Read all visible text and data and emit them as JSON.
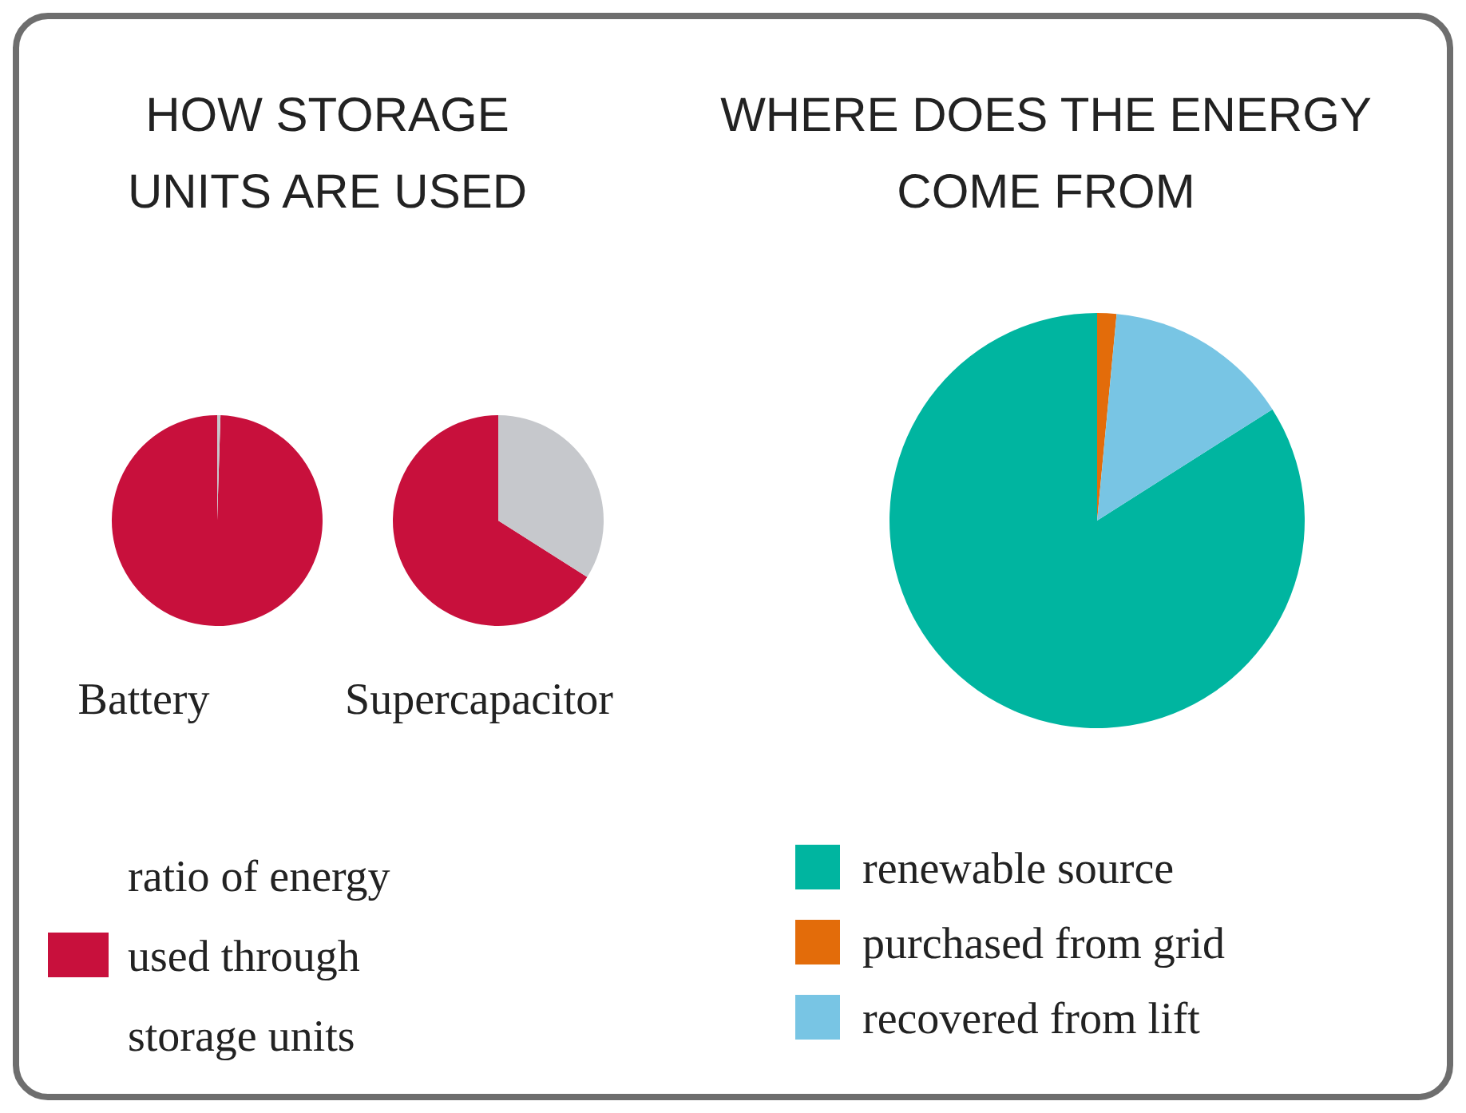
{
  "chart_data": [
    {
      "type": "pie",
      "title": "HOW STORAGE UNITS ARE USED",
      "xlabel": "Battery",
      "categories": [
        "ratio of energy used through storage units",
        null
      ],
      "values": [
        99.5,
        0.5
      ],
      "colors": [
        "#c8103c",
        "#c6c8cc"
      ],
      "legend": "bottom"
    },
    {
      "type": "pie",
      "xlabel": "Supercapacitor",
      "categories": [
        null,
        null
      ],
      "values": [
        66,
        34
      ],
      "colors": [
        "#c8103c",
        "#c6c8cc"
      ]
    },
    {
      "type": "pie",
      "title": "WHERE DOES THE ENERGY COME FROM",
      "categories": [
        "renewable source",
        "purchased from grid",
        "recovered from lift"
      ],
      "values": [
        84,
        1.5,
        14.5
      ],
      "colors": [
        "#00b5a0",
        "#e36c0a",
        "#78c5e4"
      ],
      "legend": "bottom"
    }
  ]
}
